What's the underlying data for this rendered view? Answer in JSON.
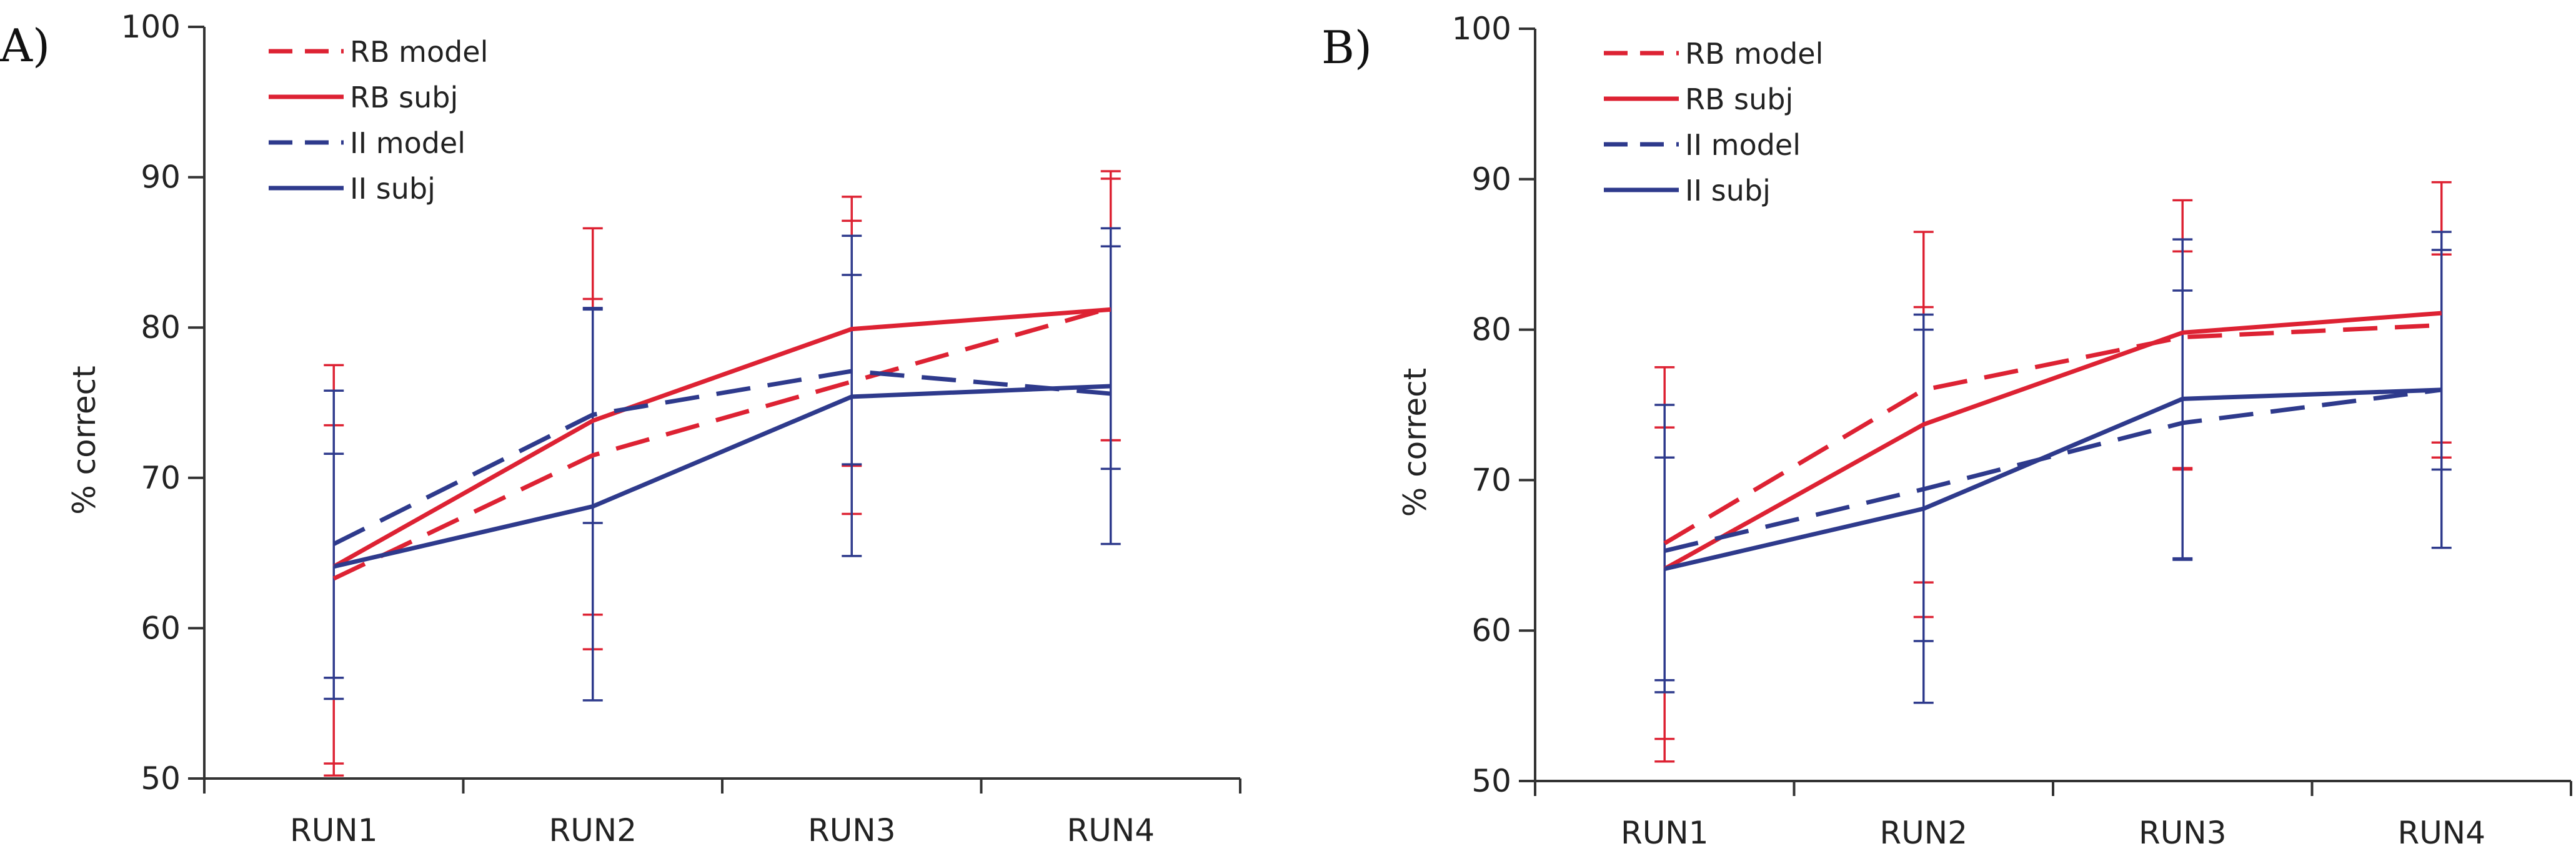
{
  "colors": {
    "red": "#dd2233",
    "blue": "#2e3a8c",
    "axis": "#333333"
  },
  "chart_data": [
    {
      "panel_label": "A)",
      "type": "line",
      "categories": [
        "RUN1",
        "RUN2",
        "RUN3",
        "RUN4"
      ],
      "ylabel": "% correct",
      "xlabel": "",
      "ylim": [
        50,
        100
      ],
      "yticks": [
        "50",
        "60",
        "70",
        "80",
        "90",
        "100"
      ],
      "legend_position": "top-left",
      "series": [
        {
          "name": "RB model",
          "color": "red",
          "dash": true,
          "values": [
            63.3,
            71.5,
            76.4,
            81.3
          ],
          "err_low": [
            51.0,
            58.6,
            67.6,
            72.5
          ],
          "err_high": [
            77.5,
            86.6,
            88.7,
            90.4
          ]
        },
        {
          "name": "RB subj",
          "color": "red",
          "dash": false,
          "values": [
            64.1,
            73.8,
            79.9,
            81.2
          ],
          "err_low": [
            50.2,
            60.9,
            70.8,
            72.5
          ],
          "err_high": [
            73.5,
            81.9,
            87.1,
            89.9
          ]
        },
        {
          "name": "II model",
          "color": "blue",
          "dash": true,
          "values": [
            65.6,
            74.2,
            77.1,
            75.6
          ],
          "err_low": [
            55.3,
            67.0,
            70.9,
            65.6
          ],
          "err_high": [
            75.8,
            81.2,
            83.5,
            85.4
          ]
        },
        {
          "name": "II subj",
          "color": "blue",
          "dash": false,
          "values": [
            64.1,
            68.1,
            75.4,
            76.1
          ],
          "err_low": [
            56.7,
            55.2,
            64.8,
            70.6
          ],
          "err_high": [
            71.6,
            81.3,
            86.1,
            86.6
          ]
        }
      ]
    },
    {
      "panel_label": "B)",
      "type": "line",
      "categories": [
        "RUN1",
        "RUN2",
        "RUN3",
        "RUN4"
      ],
      "ylabel": "% correct",
      "xlabel": "",
      "ylim": [
        50,
        100
      ],
      "yticks": [
        "50",
        "60",
        "70",
        "80",
        "90",
        "100"
      ],
      "legend_position": "top-left",
      "series": [
        {
          "name": "RB model",
          "color": "red",
          "dash": true,
          "values": [
            65.8,
            76.0,
            79.5,
            80.3
          ],
          "err_low": [
            52.8,
            63.2,
            70.8,
            71.5
          ],
          "err_high": [
            77.5,
            86.5,
            88.6,
            89.8
          ]
        },
        {
          "name": "RB subj",
          "color": "red",
          "dash": false,
          "values": [
            64.1,
            73.7,
            79.8,
            81.1
          ],
          "err_low": [
            51.3,
            60.9,
            70.7,
            72.5
          ],
          "err_high": [
            73.5,
            81.5,
            85.2,
            85.0
          ]
        },
        {
          "name": "II model",
          "color": "blue",
          "dash": true,
          "values": [
            65.3,
            69.4,
            73.8,
            76.0
          ],
          "err_low": [
            55.9,
            59.3,
            64.8,
            65.5
          ],
          "err_high": [
            75.0,
            80.0,
            82.6,
            86.5
          ]
        },
        {
          "name": "II subj",
          "color": "blue",
          "dash": false,
          "values": [
            64.1,
            68.1,
            75.4,
            76.0
          ],
          "err_low": [
            56.7,
            55.2,
            64.7,
            70.7
          ],
          "err_high": [
            71.5,
            81.0,
            86.0,
            85.3
          ]
        }
      ]
    }
  ]
}
